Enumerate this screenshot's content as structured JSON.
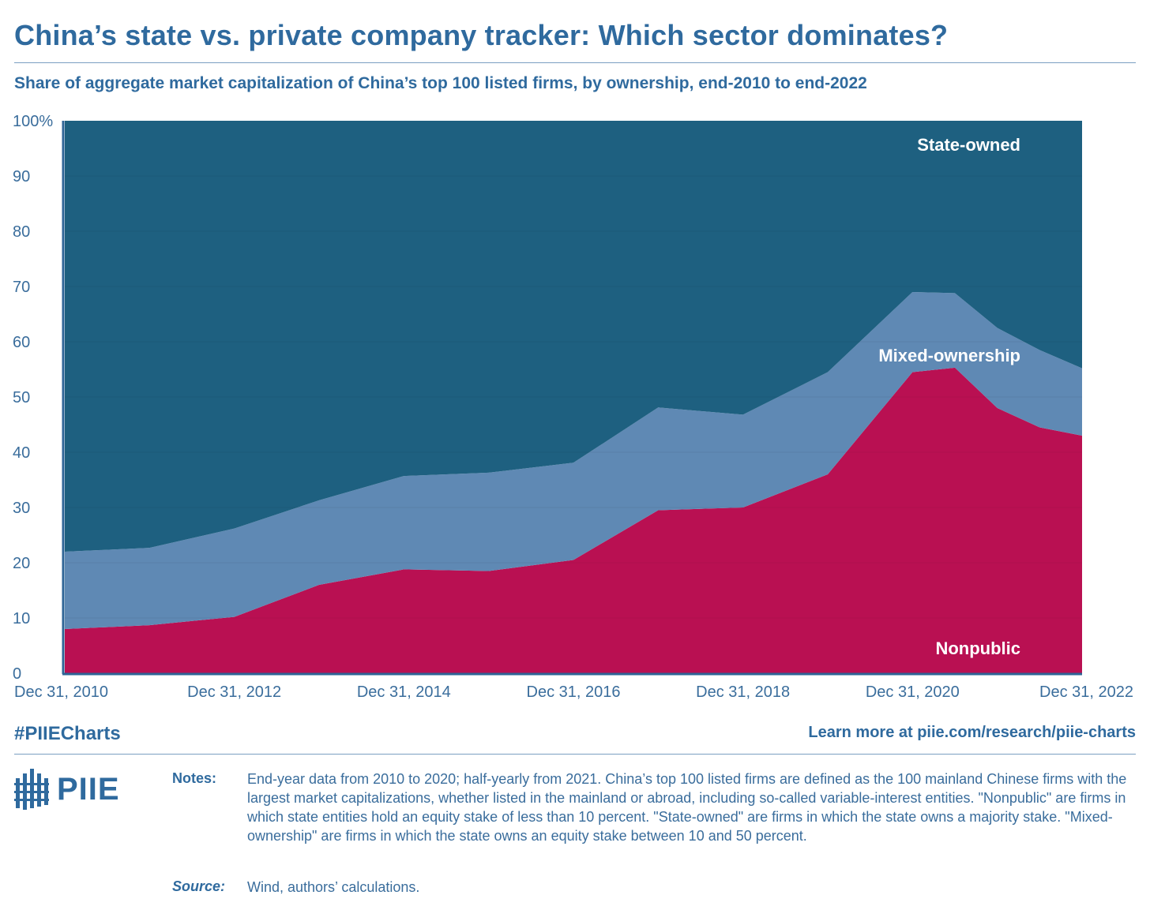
{
  "header": {
    "title": "China’s state vs. private company tracker: Which sector dominates?",
    "subtitle": "Share of aggregate market capitalization of China’s top 100 listed firms, by ownership, end-2010 to end-2022"
  },
  "chart_data": {
    "type": "area",
    "stacked": true,
    "title": "China’s state vs. private company tracker: Which sector dominates?",
    "subtitle": "Share of aggregate market capitalization of China’s top 100 listed firms, by ownership, end-2010 to end-2022",
    "ylim": [
      0,
      100
    ],
    "y_ticks": [
      "100%",
      "90",
      "80",
      "70",
      "60",
      "50",
      "40",
      "30",
      "20",
      "10",
      "0"
    ],
    "x_ticks": [
      "Dec 31, 2010",
      "Dec 31, 2012",
      "Dec 31, 2014",
      "Dec 31, 2016",
      "Dec 31, 2018",
      "Dec 31, 2020",
      "Dec 31, 2022"
    ],
    "x": [
      2010,
      2011,
      2012,
      2013,
      2014,
      2015,
      2016,
      2017,
      2018,
      2019,
      2020,
      2020.5,
      2021,
      2021.5,
      2022
    ],
    "series": [
      {
        "name": "Nonpublic",
        "color": "#b91052",
        "values": [
          8,
          8.7,
          10.2,
          16,
          18.8,
          18.5,
          20.5,
          29.5,
          30,
          36,
          54.5,
          55.3,
          48,
          44.5,
          43
        ]
      },
      {
        "name": "Mixed-ownership",
        "color": "#5f89b4",
        "values": [
          14,
          14,
          16,
          15.3,
          16.9,
          17.8,
          17.6,
          18.6,
          16.8,
          18.5,
          14.5,
          13.5,
          14.5,
          14,
          12.2
        ]
      },
      {
        "name": "State-owned",
        "color": "#1e6080",
        "values": [
          78,
          77.3,
          73.8,
          68.7,
          64.3,
          63.7,
          61.9,
          51.9,
          53.2,
          45.5,
          31,
          31.2,
          37.5,
          41.5,
          44.8
        ]
      }
    ],
    "labels": {
      "state": "State-owned",
      "mixed": "Mixed-ownership",
      "nonpublic": "Nonpublic"
    }
  },
  "footer": {
    "hashtag": "#PIIECharts",
    "learn_more": "Learn more at piie.com/research/piie-charts",
    "logo_text": "PIIE",
    "notes_label": "Notes:",
    "notes_text": "End-year data from 2010 to 2020; half-yearly from 2021. China’s top 100 listed firms are defined as the 100 mainland Chinese firms with the largest market capitalizations, whether listed in the mainland or abroad, including so-called variable-interest entities. \"Nonpublic\" are firms in which state entities hold an equity stake of less than 10 percent. \"State-owned\" are firms in which the state owns a majority stake. \"Mixed-ownership\" are firms in which the state owns an equity stake between 10 and 50 percent.",
    "source_label": "Source:",
    "source_text": "Wind, authors’ calculations."
  }
}
